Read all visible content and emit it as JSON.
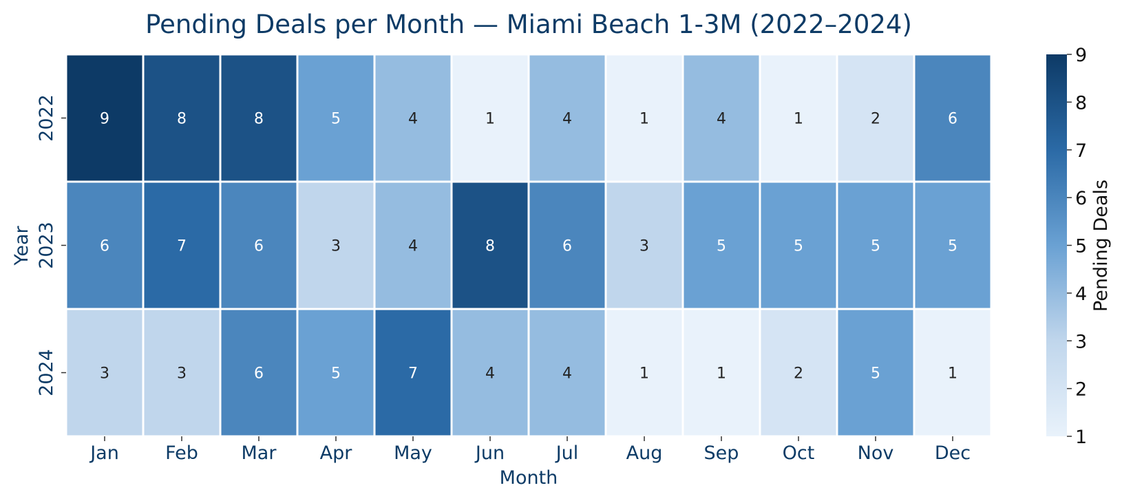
{
  "chart_data": {
    "type": "heatmap",
    "title": "Pending Deals per Month — Miami Beach 1-3M (2022–2024)",
    "xlabel": "Month",
    "ylabel": "Year",
    "x_categories": [
      "Jan",
      "Feb",
      "Mar",
      "Apr",
      "May",
      "Jun",
      "Jul",
      "Aug",
      "Sep",
      "Oct",
      "Nov",
      "Dec"
    ],
    "y_categories": [
      "2022",
      "2023",
      "2024"
    ],
    "values": [
      [
        9,
        8,
        8,
        5,
        4,
        1,
        4,
        1,
        4,
        1,
        2,
        6
      ],
      [
        6,
        7,
        6,
        3,
        4,
        8,
        6,
        3,
        5,
        5,
        5,
        5
      ],
      [
        3,
        3,
        6,
        5,
        7,
        4,
        4,
        1,
        1,
        2,
        5,
        1
      ]
    ],
    "annotated": true,
    "colorbar": {
      "label": "Pending Deals",
      "min": 1,
      "max": 9,
      "ticks": [
        1,
        2,
        3,
        4,
        5,
        6,
        7,
        8,
        9
      ]
    },
    "colormap": "Blues",
    "colors": {
      "title": "#0d3b66",
      "axis_text": "#0d3b66",
      "cell_border": "#ffffff",
      "text_light": "#ffffff",
      "text_dark": "#222222"
    }
  }
}
